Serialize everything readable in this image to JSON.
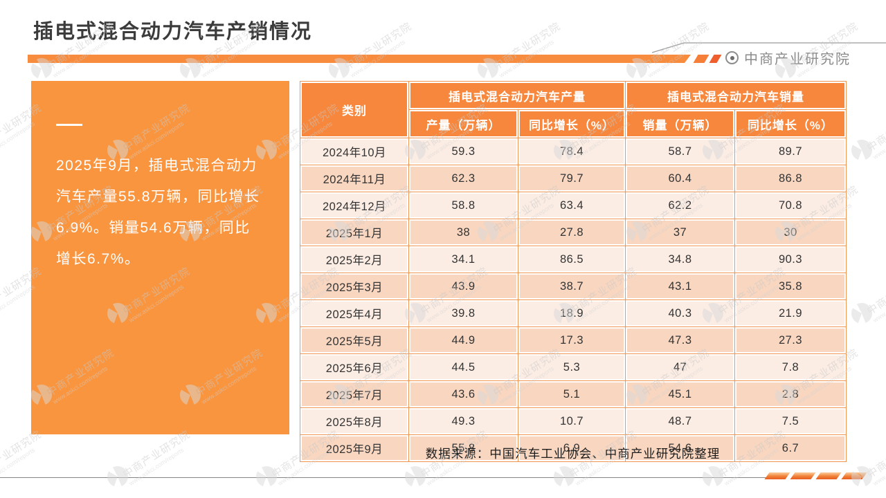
{
  "title": "插电式混合动力汽车产销情况",
  "brand": {
    "name": "中商产业研究院"
  },
  "summary": {
    "text": "2025年9月，插电式混合动力汽车产量55.8万辆，同比增长6.9%。销量54.6万辆，同比增长6.7%。"
  },
  "source": "数据来源：中国汽车工业协会、中商产业研究院整理",
  "watermark": {
    "line1": "中商产业研究院",
    "line2": "www.askci.com/reports"
  },
  "colors": {
    "primary_orange": "#F78C3E",
    "header_orange": "#F6873C",
    "panel_orange": "#F9953F",
    "row_light": "#FCEDE4",
    "row_dark": "#F8D6C0",
    "grid_border": "#F0944F",
    "accent_red_orange": "#EF5E2D"
  },
  "chart_data": {
    "type": "table",
    "title": "插电式混合动力汽车产销情况",
    "col_groups": [
      "插电式混合动力汽车产量",
      "插电式混合动力汽车销量"
    ],
    "columns": [
      "类别",
      "产量（万辆）",
      "同比增长（%）",
      "销量（万辆）",
      "同比增长（%）"
    ],
    "rows": [
      [
        "2024年10月",
        "59.3",
        "78.4",
        "58.7",
        "89.7"
      ],
      [
        "2024年11月",
        "62.3",
        "79.7",
        "60.4",
        "86.8"
      ],
      [
        "2024年12月",
        "58.8",
        "63.4",
        "62.2",
        "70.8"
      ],
      [
        "2025年1月",
        "38",
        "27.8",
        "37",
        "30"
      ],
      [
        "2025年2月",
        "34.1",
        "86.5",
        "34.8",
        "90.3"
      ],
      [
        "2025年3月",
        "43.9",
        "38.7",
        "43.1",
        "35.8"
      ],
      [
        "2025年4月",
        "39.8",
        "18.9",
        "40.3",
        "21.9"
      ],
      [
        "2025年5月",
        "44.9",
        "17.3",
        "47.3",
        "27.3"
      ],
      [
        "2025年6月",
        "44.5",
        "5.3",
        "47",
        "7.8"
      ],
      [
        "2025年7月",
        "43.6",
        "5.1",
        "45.1",
        "2.8"
      ],
      [
        "2025年8月",
        "49.3",
        "10.7",
        "48.7",
        "7.5"
      ],
      [
        "2025年9月",
        "55.8",
        "6.9",
        "54.6",
        "6.7"
      ]
    ]
  }
}
